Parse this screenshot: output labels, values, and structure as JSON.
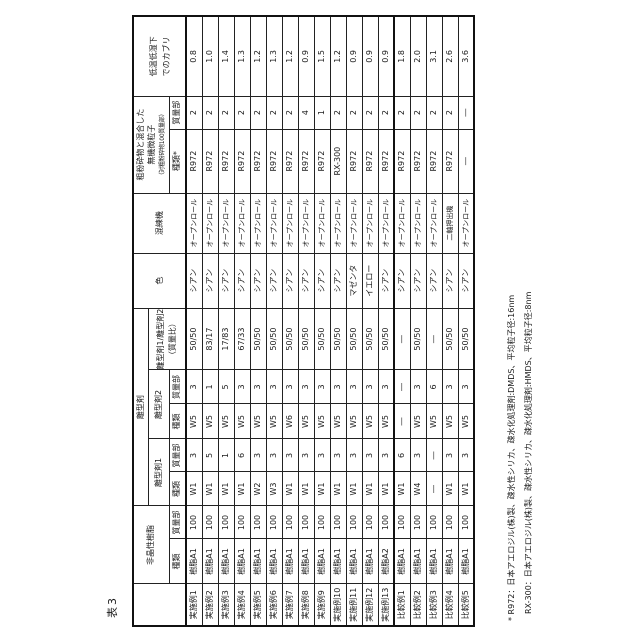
{
  "caption": "表3",
  "table": {
    "headers": {
      "resin_group": "非晶性樹脂",
      "release_group": "離型剤",
      "release1": "離型剤1",
      "release2": "離型剤2",
      "ratio_line1": "離型剤1/離型剤2",
      "ratio_line2": "（質量比）",
      "type": "種類",
      "parts": "質量部",
      "type_star": "種類*",
      "color": "色",
      "kneader": "混練機",
      "silica_line1": "粗粉砕物と混合した",
      "silica_line2": "無機微粒子",
      "silica_line3": "（対粗粉砕物100質量部）",
      "fog_line1": "低温低湿下",
      "fog_line2": "でのカブリ"
    },
    "rows": [
      [
        "実施例1",
        "樹脂A1",
        "100",
        "W1",
        "3",
        "W5",
        "3",
        "50/50",
        "シアン",
        "オープンロール",
        "R972",
        "2",
        "0.8"
      ],
      [
        "実施例2",
        "樹脂A1",
        "100",
        "W1",
        "5",
        "W5",
        "1",
        "83/17",
        "シアン",
        "オープンロール",
        "R972",
        "2",
        "1.0"
      ],
      [
        "実施例3",
        "樹脂A1",
        "100",
        "W1",
        "1",
        "W5",
        "5",
        "17/83",
        "シアン",
        "オープンロール",
        "R972",
        "2",
        "1.4"
      ],
      [
        "実施例4",
        "樹脂A1",
        "100",
        "W1",
        "6",
        "W5",
        "3",
        "67/33",
        "シアン",
        "オープンロール",
        "R972",
        "2",
        "1.3"
      ],
      [
        "実施例5",
        "樹脂A1",
        "100",
        "W2",
        "3",
        "W5",
        "3",
        "50/50",
        "シアン",
        "オープンロール",
        "R972",
        "2",
        "1.2"
      ],
      [
        "実施例6",
        "樹脂A1",
        "100",
        "W3",
        "3",
        "W5",
        "3",
        "50/50",
        "シアン",
        "オープンロール",
        "R972",
        "2",
        "1.3"
      ],
      [
        "実施例7",
        "樹脂A1",
        "100",
        "W1",
        "3",
        "W6",
        "3",
        "50/50",
        "シアン",
        "オープンロール",
        "R972",
        "2",
        "1.2"
      ],
      [
        "実施例8",
        "樹脂A1",
        "100",
        "W1",
        "3",
        "W5",
        "3",
        "50/50",
        "シアン",
        "オープンロール",
        "R972",
        "4",
        "0.9"
      ],
      [
        "実施例9",
        "樹脂A1",
        "100",
        "W1",
        "3",
        "W5",
        "3",
        "50/50",
        "シアン",
        "オープンロール",
        "R972",
        "1",
        "1.5"
      ],
      [
        "実施例10",
        "樹脂A1",
        "100",
        "W1",
        "3",
        "W5",
        "3",
        "50/50",
        "シアン",
        "オープンロール",
        "RX-300",
        "2",
        "1.2"
      ],
      [
        "実施例11",
        "樹脂A1",
        "100",
        "W1",
        "3",
        "W5",
        "3",
        "50/50",
        "マゼンタ",
        "オープンロール",
        "R972",
        "2",
        "0.9"
      ],
      [
        "実施例12",
        "樹脂A1",
        "100",
        "W1",
        "3",
        "W5",
        "3",
        "50/50",
        "イエロー",
        "オープンロール",
        "R972",
        "2",
        "0.9"
      ],
      [
        "実施例13",
        "樹脂A2",
        "100",
        "W1",
        "3",
        "W5",
        "3",
        "50/50",
        "シアン",
        "オープンロール",
        "R972",
        "2",
        "0.9"
      ],
      [
        "比較例1",
        "樹脂A1",
        "100",
        "W1",
        "6",
        "―",
        "―",
        "―",
        "シアン",
        "オープンロール",
        "R972",
        "2",
        "1.8"
      ],
      [
        "比較例2",
        "樹脂A1",
        "100",
        "W4",
        "3",
        "W5",
        "3",
        "50/50",
        "シアン",
        "オープンロール",
        "R972",
        "2",
        "2.0"
      ],
      [
        "比較例3",
        "樹脂A1",
        "100",
        "―",
        "―",
        "W5",
        "6",
        "―",
        "シアン",
        "オープンロール",
        "R972",
        "2",
        "3.1"
      ],
      [
        "比較例4",
        "樹脂A1",
        "100",
        "W1",
        "3",
        "W5",
        "3",
        "50/50",
        "シアン",
        "二軸押出機",
        "R972",
        "2",
        "2.6"
      ],
      [
        "比較例5",
        "樹脂A1",
        "100",
        "W1",
        "3",
        "W5",
        "3",
        "50/50",
        "シアン",
        "オープンロール",
        "―",
        "―",
        "3.6"
      ]
    ]
  },
  "footnote": {
    "line1": "* R972：日本アエロジル(株)製、疎水性シリカ、疎水化処理剤:DMDS、平均粒子径:16nm",
    "line2": "RX-300：日本アエロジル(株)製、疎水性シリカ、疎水化処理剤:HMDS、平均粒子径:8nm"
  }
}
